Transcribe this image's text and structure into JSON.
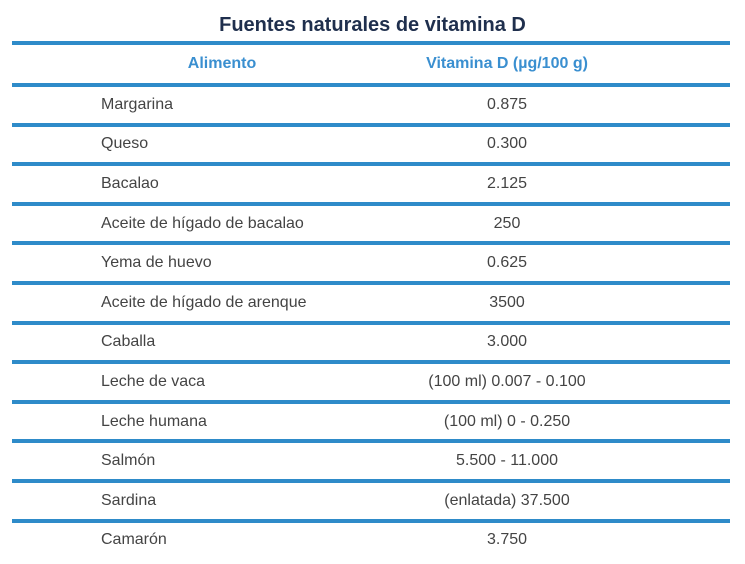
{
  "title": "Fuentes naturales de vitamina D",
  "table": {
    "headers": {
      "food": "Alimento",
      "vitamin_d": "Vitamina D (µg/100 g)"
    },
    "rows": [
      {
        "food": "Margarina",
        "value": "0.875"
      },
      {
        "food": "Queso",
        "value": "0.300"
      },
      {
        "food": "Bacalao",
        "value": "2.125"
      },
      {
        "food": "Aceite de hígado de bacalao",
        "value": "250"
      },
      {
        "food": "Yema de huevo",
        "value": "0.625"
      },
      {
        "food": "Aceite de hígado de arenque",
        "value": "3500"
      },
      {
        "food": "Caballa",
        "value": "3.000"
      },
      {
        "food": "Leche de vaca",
        "value": "(100 ml) 0.007 - 0.100"
      },
      {
        "food": "Leche humana",
        "value": "(100 ml) 0 - 0.250"
      },
      {
        "food": "Salmón",
        "value": "5.500 - 11.000"
      },
      {
        "food": "Sardina",
        "value": "(enlatada) 37.500"
      },
      {
        "food": "Camarón",
        "value": "3.750"
      }
    ]
  },
  "colors": {
    "accent": "#2e8bc9",
    "header_text": "#3a8fd0",
    "title_text": "#1f2f4d",
    "body_text": "#444444"
  }
}
